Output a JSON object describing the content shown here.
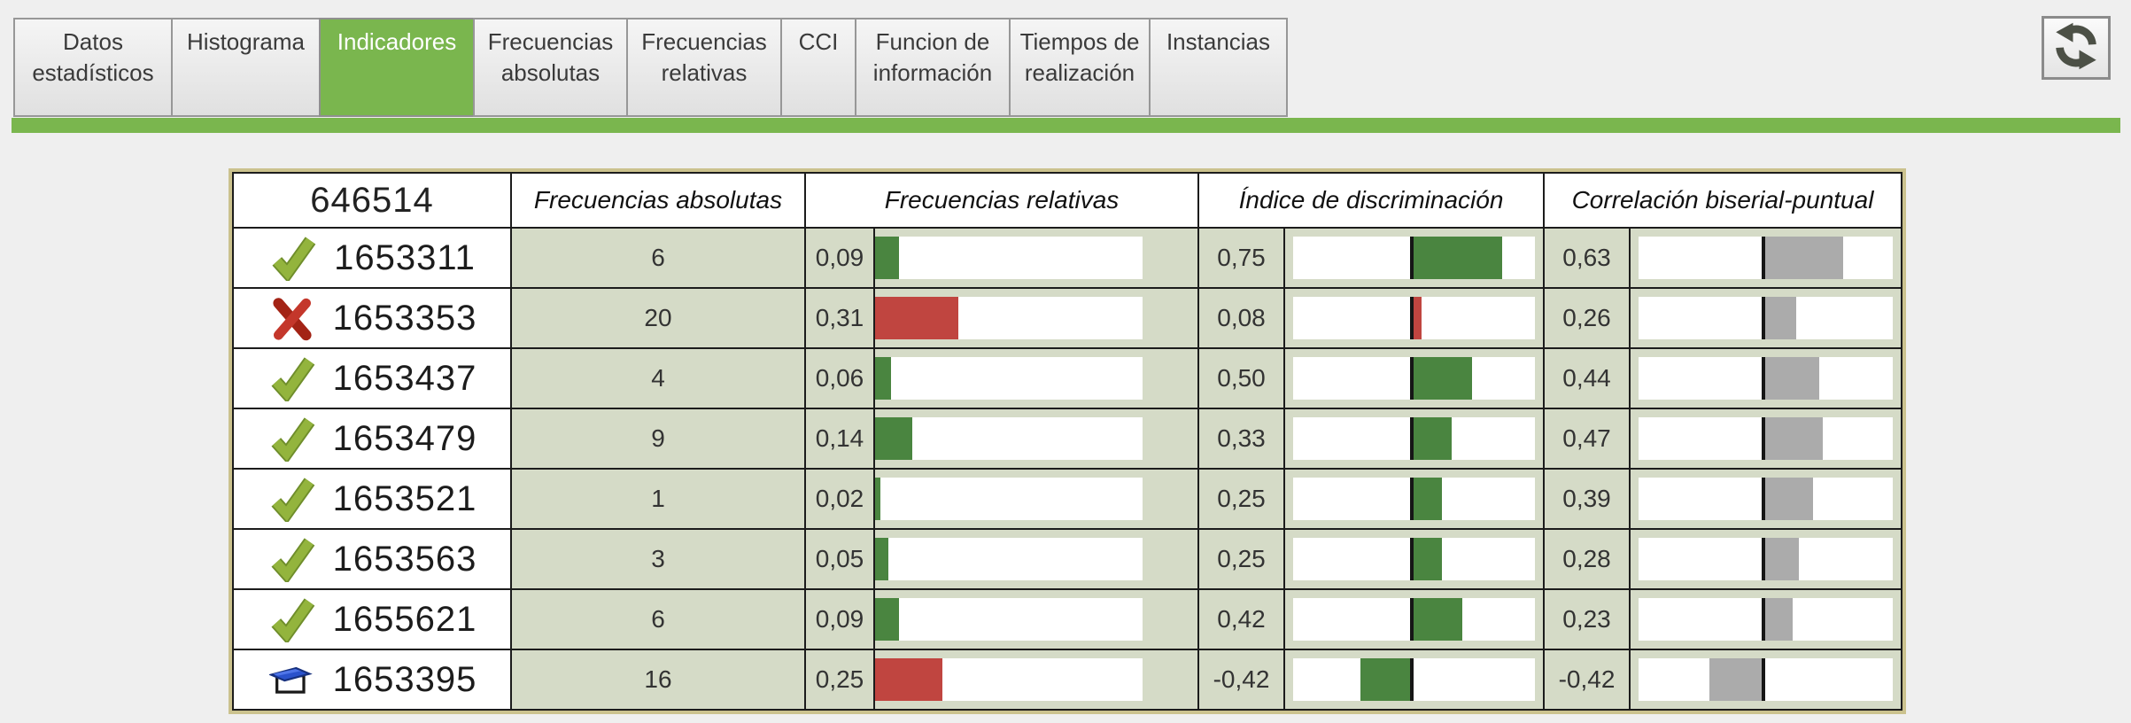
{
  "tabs": [
    {
      "label": "Datos estadísticos",
      "selected": false
    },
    {
      "label": "Histograma",
      "selected": false
    },
    {
      "label": "Indicadores",
      "selected": true
    },
    {
      "label": "Frecuencias absolutas",
      "selected": false
    },
    {
      "label": "Frecuencias relativas",
      "selected": false
    },
    {
      "label": "CCI",
      "selected": false
    },
    {
      "label": "Funcion de información",
      "selected": false
    },
    {
      "label": "Tiempos de realización",
      "selected": false
    },
    {
      "label": "Instancias",
      "selected": false
    }
  ],
  "toolbar": {
    "refresh_icon": "refresh-icon"
  },
  "colors": {
    "accent_green": "#7ab64e",
    "bar_green": "#4a8540",
    "bar_red": "#c04540",
    "bar_gray": "#ababab",
    "cell_sage": "#d5dbc7",
    "table_border_tan": "#cbc28e"
  },
  "table": {
    "header": {
      "exam_code": "646514",
      "freq_abs": "Frecuencias absolutas",
      "freq_rel": "Frecuencias relativas",
      "discrimination": "Índice de discriminación",
      "biserial": "Correlación biserial-puntual"
    },
    "rows": [
      {
        "icon": "check",
        "id": "1653311",
        "freq_abs": "6",
        "freq_rel": "0,09",
        "freq_rel_value": 0.09,
        "freq_rel_color": "green",
        "discrimination": "0,75",
        "discrimination_value": 0.75,
        "discrimination_color": "green",
        "biserial": "0,63",
        "biserial_value": 0.63
      },
      {
        "icon": "cross",
        "id": "1653353",
        "freq_abs": "20",
        "freq_rel": "0,31",
        "freq_rel_value": 0.31,
        "freq_rel_color": "red",
        "discrimination": "0,08",
        "discrimination_value": 0.08,
        "discrimination_color": "red",
        "biserial": "0,26",
        "biserial_value": 0.26
      },
      {
        "icon": "check",
        "id": "1653437",
        "freq_abs": "4",
        "freq_rel": "0,06",
        "freq_rel_value": 0.06,
        "freq_rel_color": "green",
        "discrimination": "0,50",
        "discrimination_value": 0.5,
        "discrimination_color": "green",
        "biserial": "0,44",
        "biserial_value": 0.44
      },
      {
        "icon": "check",
        "id": "1653479",
        "freq_abs": "9",
        "freq_rel": "0,14",
        "freq_rel_value": 0.14,
        "freq_rel_color": "green",
        "discrimination": "0,33",
        "discrimination_value": 0.33,
        "discrimination_color": "green",
        "biserial": "0,47",
        "biserial_value": 0.47
      },
      {
        "icon": "check",
        "id": "1653521",
        "freq_abs": "1",
        "freq_rel": "0,02",
        "freq_rel_value": 0.02,
        "freq_rel_color": "green",
        "discrimination": "0,25",
        "discrimination_value": 0.25,
        "discrimination_color": "green",
        "biserial": "0,39",
        "biserial_value": 0.39
      },
      {
        "icon": "check",
        "id": "1653563",
        "freq_abs": "3",
        "freq_rel": "0,05",
        "freq_rel_value": 0.05,
        "freq_rel_color": "green",
        "discrimination": "0,25",
        "discrimination_value": 0.25,
        "discrimination_color": "green",
        "biserial": "0,28",
        "biserial_value": 0.28
      },
      {
        "icon": "check",
        "id": "1655621",
        "freq_abs": "6",
        "freq_rel": "0,09",
        "freq_rel_value": 0.09,
        "freq_rel_color": "green",
        "discrimination": "0,42",
        "discrimination_value": 0.42,
        "discrimination_color": "green",
        "biserial": "0,23",
        "biserial_value": 0.23
      },
      {
        "icon": "eraser",
        "id": "1653395",
        "freq_abs": "16",
        "freq_rel": "0,25",
        "freq_rel_value": 0.25,
        "freq_rel_color": "red",
        "discrimination": "-0,42",
        "discrimination_value": -0.42,
        "discrimination_color": "green",
        "biserial": "-0,42",
        "biserial_value": -0.42
      }
    ]
  }
}
